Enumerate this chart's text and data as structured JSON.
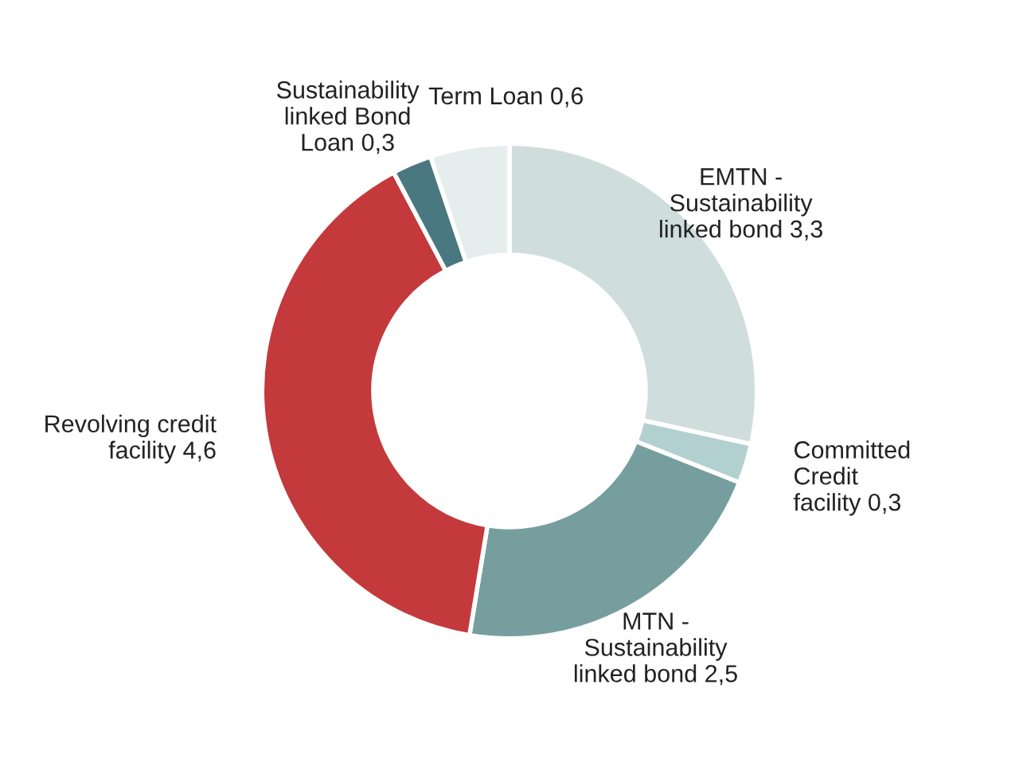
{
  "chart_data": {
    "type": "donut",
    "categories": [
      "EMTN -\nSustainability\nlinked bond",
      "Committed\nCredit\nfacility",
      "MTN -\nSustainability\nlinked bond",
      "Revolving credit\nfacility",
      "Sustainability\nlinked Bond\nLoan",
      "Term Loan"
    ],
    "values": [
      3.3,
      0.3,
      2.5,
      4.6,
      0.3,
      0.6
    ],
    "colors": [
      "#cfdedd",
      "#b3d0d0",
      "#769e9f",
      "#c4393b",
      "#4a7880",
      "#e6eded"
    ],
    "value_labels": [
      "3,3",
      "0,3",
      "2,5",
      "4,6",
      "0,3",
      "0,6"
    ]
  }
}
